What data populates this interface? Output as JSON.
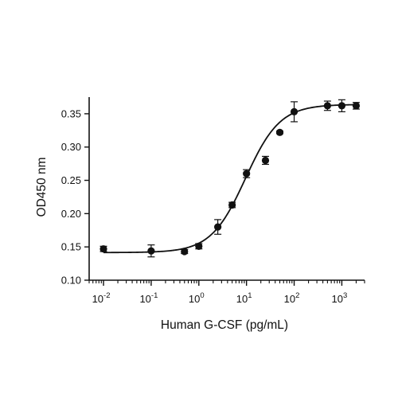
{
  "chart_data": {
    "type": "scatter",
    "title": "",
    "xlabel": "Human G-CSF (pg/mL)",
    "ylabel": "OD450 nm",
    "x_scale": "log",
    "xlim": [
      0.005,
      3000
    ],
    "ylim": [
      0.1,
      0.375
    ],
    "x_ticks": [
      {
        "value": 0.01,
        "base": "10",
        "exp": "-2"
      },
      {
        "value": 0.1,
        "base": "10",
        "exp": "-1"
      },
      {
        "value": 1,
        "base": "10",
        "exp": "0"
      },
      {
        "value": 10,
        "base": "10",
        "exp": "1"
      },
      {
        "value": 100,
        "base": "10",
        "exp": "2"
      },
      {
        "value": 1000,
        "base": "10",
        "exp": "3"
      }
    ],
    "y_ticks": [
      "0.10",
      "0.15",
      "0.20",
      "0.25",
      "0.30",
      "0.35"
    ],
    "grid": false,
    "series": [
      {
        "points": [
          {
            "x": 0.01,
            "y": 0.147,
            "err": 0.004
          },
          {
            "x": 0.1,
            "y": 0.144,
            "err": 0.009
          },
          {
            "x": 0.5,
            "y": 0.143,
            "err": 0.003
          },
          {
            "x": 1,
            "y": 0.151,
            "err": 0.004
          },
          {
            "x": 2.5,
            "y": 0.18,
            "err": 0.011
          },
          {
            "x": 5,
            "y": 0.213,
            "err": 0.004
          },
          {
            "x": 10,
            "y": 0.26,
            "err": 0.006
          },
          {
            "x": 25,
            "y": 0.28,
            "err": 0.006
          },
          {
            "x": 50,
            "y": 0.322,
            "err": 0.002
          },
          {
            "x": 100,
            "y": 0.353,
            "err": 0.015
          },
          {
            "x": 500,
            "y": 0.362,
            "err": 0.007
          },
          {
            "x": 1000,
            "y": 0.362,
            "err": 0.009
          },
          {
            "x": 2000,
            "y": 0.362,
            "err": 0.005
          }
        ]
      }
    ],
    "fit_curve": {
      "model": "4PL",
      "bottom": 0.1415,
      "top": 0.364,
      "ec50": 9.5,
      "hill": 1.2
    }
  }
}
